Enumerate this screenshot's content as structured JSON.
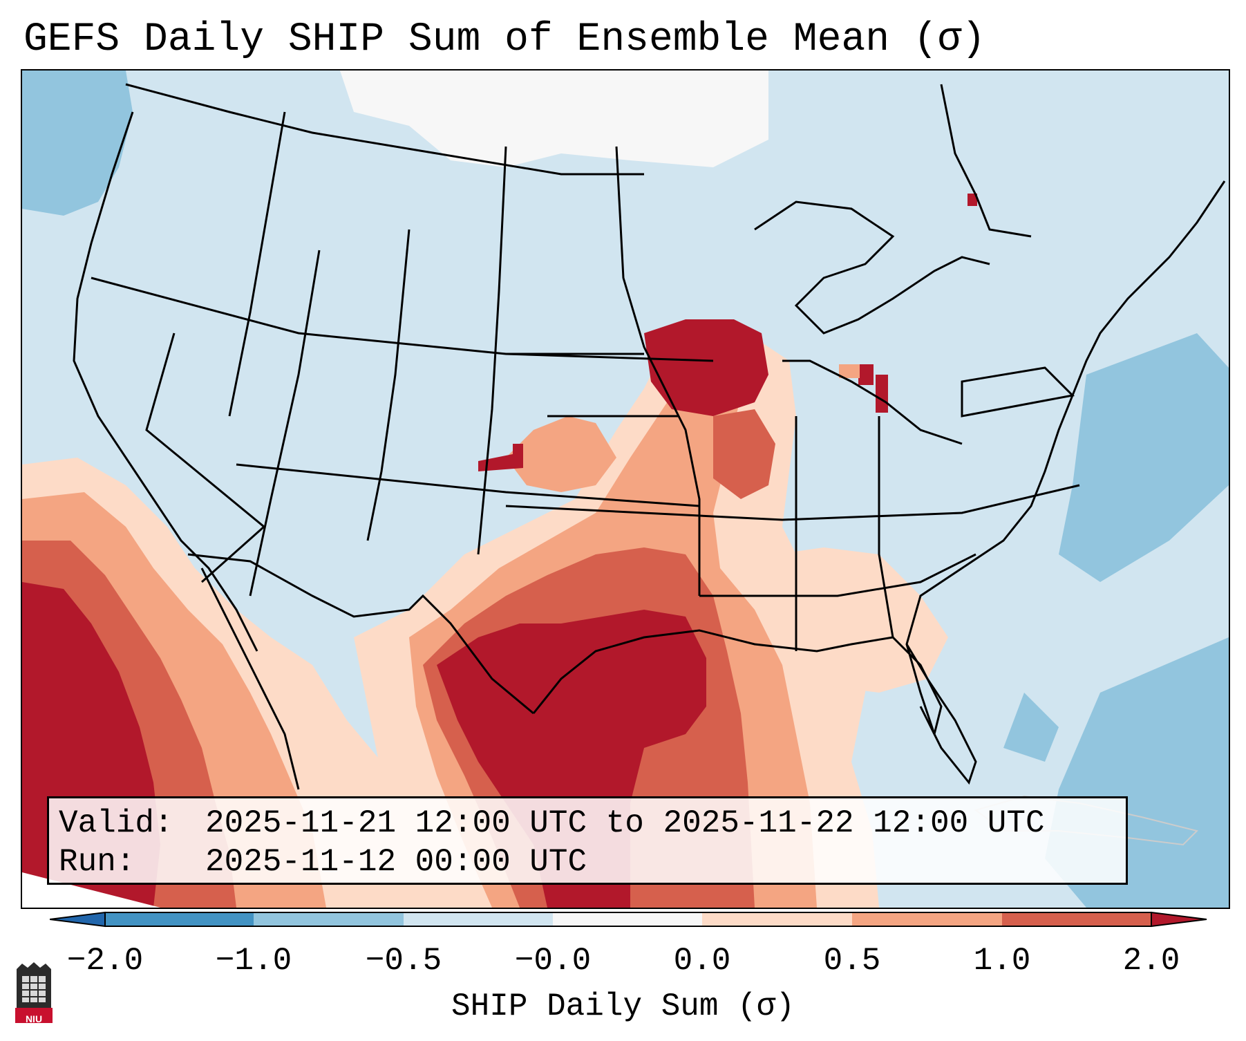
{
  "title": "GEFS Daily SHIP Sum of Ensemble Mean (σ)",
  "info": {
    "valid_label": "Valid:",
    "valid_value": "2025-11-21 12:00 UTC to 2025-11-22 12:00 UTC",
    "run_label": "Run:",
    "run_value": "2025-11-12 00:00 UTC"
  },
  "colorbar": {
    "label": "SHIP Daily Sum (σ)",
    "ticks": [
      "−2.0",
      "−1.0",
      "−0.5",
      "−0.0",
      "0.0",
      "0.5",
      "1.0",
      "2.0"
    ],
    "bins": [
      {
        "range": "< -2.0",
        "color": "#2166ac"
      },
      {
        "range": "-2.0 to -1.0",
        "color": "#4393c3"
      },
      {
        "range": "-1.0 to -0.5",
        "color": "#92c5de"
      },
      {
        "range": "-0.5 to -0.0",
        "color": "#d1e5f0"
      },
      {
        "range": "-0.0 to 0.0",
        "color": "#f7f7f7"
      },
      {
        "range": "0.0 to 0.5",
        "color": "#fddbc7"
      },
      {
        "range": "0.5 to 1.0",
        "color": "#f4a582"
      },
      {
        "range": "1.0 to 2.0",
        "color": "#d6604d"
      },
      {
        "range": "> 2.0",
        "color": "#b2182b"
      }
    ]
  },
  "logo": {
    "text": "NIU",
    "color": "#c8102e"
  }
}
